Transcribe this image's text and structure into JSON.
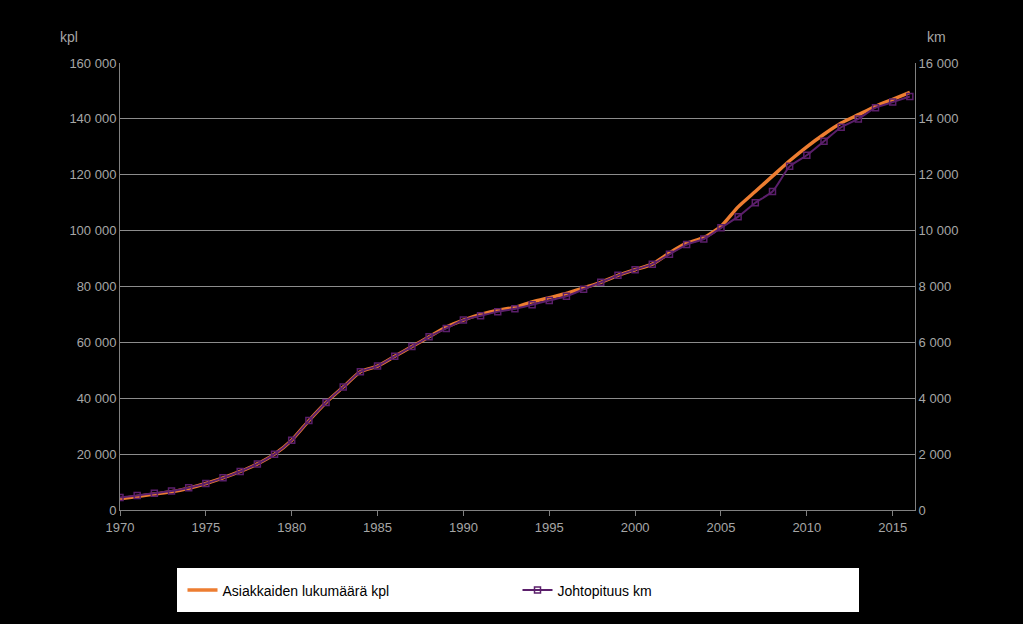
{
  "chart_data": {
    "type": "line",
    "ylabel": "kpl",
    "y2label": "km",
    "x": [
      1970,
      1971,
      1972,
      1973,
      1974,
      1975,
      1976,
      1977,
      1978,
      1979,
      1980,
      1981,
      1982,
      1983,
      1984,
      1985,
      1986,
      1987,
      1988,
      1989,
      1990,
      1991,
      1992,
      1993,
      1994,
      1995,
      1996,
      1997,
      1998,
      1999,
      2000,
      2001,
      2002,
      2003,
      2004,
      2005,
      2006,
      2007,
      2008,
      2009,
      2010,
      2011,
      2012,
      2013,
      2014,
      2015,
      2016
    ],
    "series": [
      {
        "name": "Asiakkaiden lukumäärä kpl",
        "color": "#ED7D31",
        "axis": "y",
        "values": [
          4000,
          4800,
          5700,
          6500,
          7800,
          9500,
          11500,
          13800,
          16500,
          20000,
          25000,
          32000,
          38500,
          44000,
          49500,
          51500,
          55000,
          58500,
          62000,
          65500,
          68000,
          70000,
          71500,
          72500,
          74500,
          76000,
          77500,
          79500,
          81500,
          84000,
          86000,
          88000,
          92000,
          95500,
          97500,
          101500,
          108500,
          114000,
          119500,
          125000,
          130000,
          134500,
          138500,
          141500,
          144500,
          147000,
          149500
        ]
      },
      {
        "name": "Johtopituus km",
        "color": "#5B1F6B",
        "axis": "y2",
        "marker": "square-open",
        "values": [
          450,
          520,
          600,
          680,
          800,
          950,
          1150,
          1380,
          1650,
          2000,
          2500,
          3200,
          3850,
          4400,
          4950,
          5150,
          5500,
          5850,
          6200,
          6500,
          6800,
          6950,
          7100,
          7200,
          7350,
          7500,
          7650,
          7900,
          8150,
          8400,
          8600,
          8800,
          9150,
          9500,
          9700,
          10100,
          10500,
          11000,
          11400,
          12300,
          12700,
          13200,
          13700,
          14000,
          14400,
          14600,
          14800
        ]
      }
    ],
    "xlim": [
      1970,
      2016.3
    ],
    "xticks": [
      1970,
      1975,
      1980,
      1985,
      1990,
      1995,
      2000,
      2005,
      2010,
      2015
    ],
    "ylim": [
      0,
      160000
    ],
    "yticks": [
      0,
      {
        "value": 20000,
        "label": "20 000"
      },
      {
        "value": 40000,
        "label": "40 000"
      },
      {
        "value": 60000,
        "label": "60 000"
      },
      {
        "value": 80000,
        "label": "80 000"
      },
      {
        "value": 100000,
        "label": "100 000"
      },
      {
        "value": 120000,
        "label": "120 000"
      },
      {
        "value": 140000,
        "label": "140 000"
      },
      {
        "value": 160000,
        "label": "160 000"
      }
    ],
    "y2lim": [
      0,
      16000
    ],
    "y2ticks": [
      0,
      {
        "value": 2000,
        "label": "2 000"
      },
      {
        "value": 4000,
        "label": "4 000"
      },
      {
        "value": 6000,
        "label": "6 000"
      },
      {
        "value": 8000,
        "label": "8 000"
      },
      {
        "value": 10000,
        "label": "10 000"
      },
      {
        "value": 12000,
        "label": "12 000"
      },
      {
        "value": 14000,
        "label": "14 000"
      },
      {
        "value": 16000,
        "label": "16 000"
      }
    ],
    "grid": true,
    "legend": "bottom"
  }
}
